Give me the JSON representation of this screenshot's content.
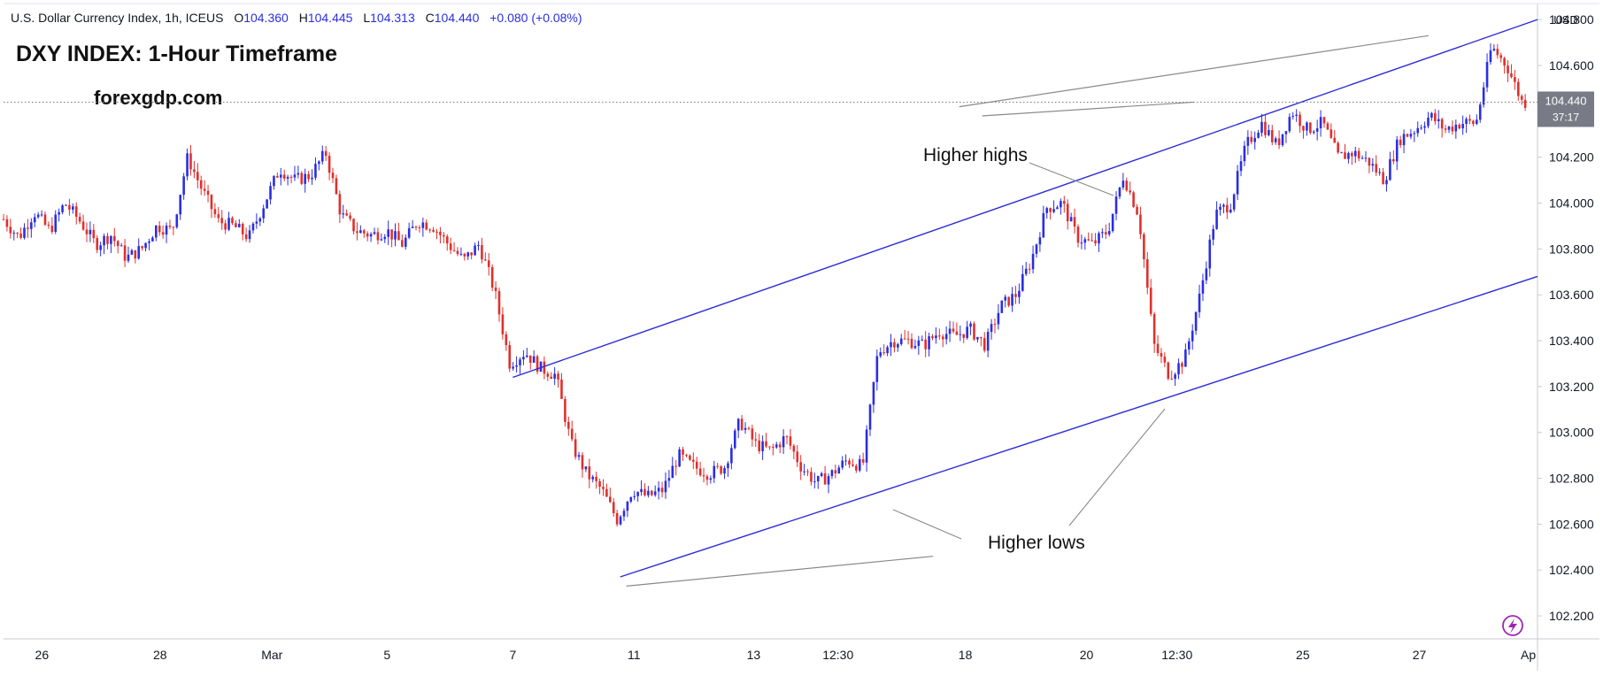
{
  "header": {
    "instrument": "U.S. Dollar Currency Index, 1h, ICEUS",
    "open_label": "O",
    "open": "104.360",
    "high_label": "H",
    "high": "104.445",
    "low_label": "L",
    "low": "104.313",
    "close_label": "C",
    "close": "104.440",
    "change": "+0.080 (+0.08%)"
  },
  "title": "DXY INDEX: 1-Hour Timeframe",
  "watermark": "forexgdp.com",
  "currency": "USD",
  "price_badge": {
    "price": "104.440",
    "countdown": "37:17"
  },
  "annotations": {
    "higher_highs": "Higher highs",
    "higher_lows": "Higher lows"
  },
  "colors": {
    "up": "#2a2ee0",
    "down": "#e0302c",
    "channel": "#2b2bd8",
    "annotation": "#8a8a8a"
  },
  "chart_data": {
    "type": "candlestick",
    "ylim": [
      102.1,
      104.87
    ],
    "xrange": [
      0,
      100
    ],
    "y_ticks": [
      104.8,
      104.6,
      104.4,
      104.2,
      104.0,
      103.8,
      103.6,
      103.4,
      103.2,
      103.0,
      102.8,
      102.6,
      102.4,
      102.2
    ],
    "y_tick_labels": [
      "104.800",
      "104.600",
      "104.400",
      "104.200",
      "104.000",
      "103.800",
      "103.600",
      "103.400",
      "103.200",
      "103.000",
      "102.800",
      "102.600",
      "102.400",
      "102.200"
    ],
    "x_ticks": [
      {
        "label": "26",
        "x": 2.5
      },
      {
        "label": "28",
        "x": 10.2
      },
      {
        "label": "Mar",
        "x": 17.5
      },
      {
        "label": "5",
        "x": 25.0
      },
      {
        "label": "7",
        "x": 33.2
      },
      {
        "label": "11",
        "x": 41.1
      },
      {
        "label": "13",
        "x": 48.9
      },
      {
        "label": "12:30",
        "x": 54.4
      },
      {
        "label": "18",
        "x": 62.7
      },
      {
        "label": "20",
        "x": 70.6
      },
      {
        "label": "12:30",
        "x": 76.5
      },
      {
        "label": "25",
        "x": 84.7
      },
      {
        "label": "27",
        "x": 92.3
      },
      {
        "label": "Ap",
        "x": 99.4
      }
    ],
    "last_price": 104.44,
    "price_path": [
      [
        0,
        103.93
      ],
      [
        1,
        103.85
      ],
      [
        2,
        103.96
      ],
      [
        3,
        103.88
      ],
      [
        4,
        104.0
      ],
      [
        5,
        103.92
      ],
      [
        6,
        103.82
      ],
      [
        7,
        103.86
      ],
      [
        8,
        103.76
      ],
      [
        9,
        103.8
      ],
      [
        10,
        103.9
      ],
      [
        11,
        103.88
      ],
      [
        12,
        104.2
      ],
      [
        13,
        104.05
      ],
      [
        14,
        103.92
      ],
      [
        15,
        103.9
      ],
      [
        16,
        103.85
      ],
      [
        17,
        104.0
      ],
      [
        18,
        104.15
      ],
      [
        19,
        104.1
      ],
      [
        20,
        104.12
      ],
      [
        21,
        104.22
      ],
      [
        22,
        103.95
      ],
      [
        23,
        103.88
      ],
      [
        24,
        103.86
      ],
      [
        25,
        103.88
      ],
      [
        26,
        103.82
      ],
      [
        27,
        103.92
      ],
      [
        28,
        103.9
      ],
      [
        29,
        103.82
      ],
      [
        30,
        103.75
      ],
      [
        31,
        103.82
      ],
      [
        32,
        103.62
      ],
      [
        33,
        103.3
      ],
      [
        34,
        103.35
      ],
      [
        35,
        103.28
      ],
      [
        36,
        103.25
      ],
      [
        37,
        102.95
      ],
      [
        38,
        102.82
      ],
      [
        39,
        102.75
      ],
      [
        40,
        102.62
      ],
      [
        41,
        102.75
      ],
      [
        42,
        102.72
      ],
      [
        43,
        102.75
      ],
      [
        44,
        102.9
      ],
      [
        45,
        102.85
      ],
      [
        46,
        102.82
      ],
      [
        47,
        102.85
      ],
      [
        48,
        103.05
      ],
      [
        49,
        102.95
      ],
      [
        50,
        102.92
      ],
      [
        51,
        102.98
      ],
      [
        52,
        102.85
      ],
      [
        53,
        102.78
      ],
      [
        54,
        102.82
      ],
      [
        55,
        102.88
      ],
      [
        56,
        102.85
      ],
      [
        57,
        103.35
      ],
      [
        58,
        103.4
      ],
      [
        59,
        103.4
      ],
      [
        60,
        103.38
      ],
      [
        61,
        103.44
      ],
      [
        62,
        103.42
      ],
      [
        63,
        103.45
      ],
      [
        64,
        103.38
      ],
      [
        65,
        103.55
      ],
      [
        66,
        103.6
      ],
      [
        67,
        103.75
      ],
      [
        68,
        103.98
      ],
      [
        69,
        104.0
      ],
      [
        70,
        103.85
      ],
      [
        71,
        103.82
      ],
      [
        72,
        103.88
      ],
      [
        73,
        104.12
      ],
      [
        74,
        103.95
      ],
      [
        75,
        103.38
      ],
      [
        76,
        103.25
      ],
      [
        77,
        103.32
      ],
      [
        78,
        103.6
      ],
      [
        79,
        103.95
      ],
      [
        80,
        104.0
      ],
      [
        81,
        104.25
      ],
      [
        82,
        104.35
      ],
      [
        83,
        104.25
      ],
      [
        84,
        104.4
      ],
      [
        85,
        104.32
      ],
      [
        86,
        104.35
      ],
      [
        87,
        104.2
      ],
      [
        88,
        104.22
      ],
      [
        89,
        104.18
      ],
      [
        90,
        104.1
      ],
      [
        91,
        104.28
      ],
      [
        92,
        104.32
      ],
      [
        93,
        104.38
      ],
      [
        94,
        104.32
      ],
      [
        95,
        104.35
      ],
      [
        96,
        104.35
      ],
      [
        97,
        104.68
      ],
      [
        98,
        104.6
      ],
      [
        99,
        104.44
      ]
    ],
    "channel_upper": [
      [
        33.2,
        103.24
      ],
      [
        100,
        104.8
      ]
    ],
    "channel_lower": [
      [
        40.2,
        102.37
      ],
      [
        100,
        103.68
      ]
    ],
    "higher_highs_line": [
      [
        62.3,
        104.42
      ],
      [
        92.9,
        104.73
      ]
    ],
    "higher_highs_line2": [
      [
        63.8,
        104.38
      ],
      [
        77.6,
        104.44
      ]
    ],
    "higher_lows_line": [
      [
        40.6,
        102.33
      ],
      [
        60.6,
        102.46
      ]
    ]
  }
}
